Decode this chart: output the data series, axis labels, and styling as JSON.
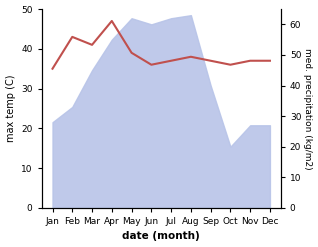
{
  "months": [
    "Jan",
    "Feb",
    "Mar",
    "Apr",
    "May",
    "Jun",
    "Jul",
    "Aug",
    "Sep",
    "Oct",
    "Nov",
    "Dec"
  ],
  "temperature": [
    35,
    43,
    41,
    47,
    39,
    36,
    37,
    38,
    37,
    36,
    37,
    37
  ],
  "rainfall_right": [
    28,
    33,
    45,
    55,
    62,
    60,
    62,
    63,
    40,
    20,
    27,
    27
  ],
  "temp_color": "#c0504d",
  "rain_fill_color": "#b8c4e8",
  "title": "",
  "xlabel": "date (month)",
  "ylabel_left": "max temp (C)",
  "ylabel_right": "med. precipitation (kg/m2)",
  "ylim_left": [
    0,
    50
  ],
  "ylim_right": [
    0,
    65
  ],
  "yticks_left": [
    0,
    10,
    20,
    30,
    40,
    50
  ],
  "yticks_right": [
    0,
    10,
    20,
    30,
    40,
    50,
    60
  ]
}
